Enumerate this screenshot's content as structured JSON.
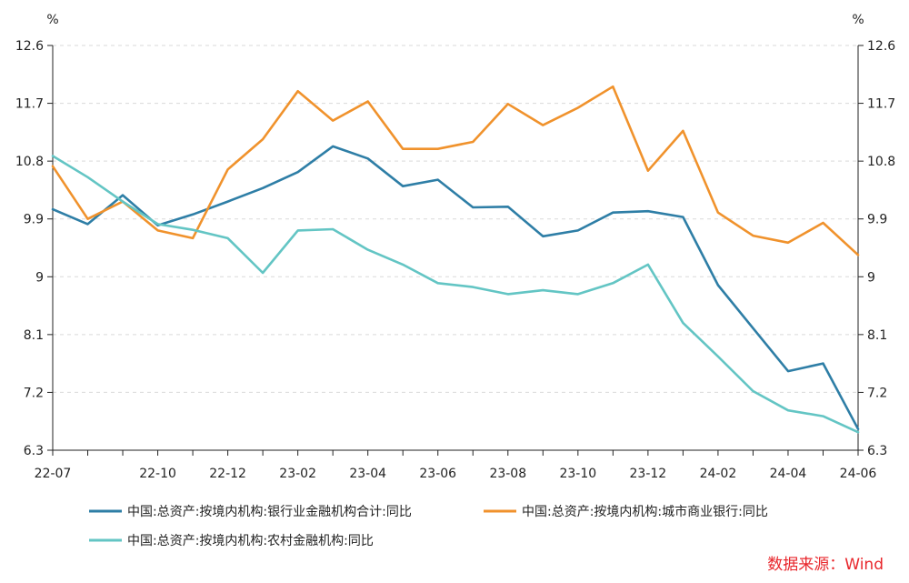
{
  "chart_data": {
    "type": "line",
    "y_unit_left": "%",
    "y_unit_right": "%",
    "ylim": [
      6.3,
      12.6
    ],
    "yticks": [
      "12.6",
      "11.7",
      "10.8",
      "9.9",
      "9",
      "8.1",
      "7.2",
      "6.3"
    ],
    "x": [
      "22-07",
      "22-08",
      "22-09",
      "22-10",
      "22-11",
      "22-12",
      "23-01",
      "23-02",
      "23-03",
      "23-04",
      "23-05",
      "23-06",
      "23-07",
      "23-08",
      "23-09",
      "23-10",
      "23-11",
      "23-12",
      "24-01",
      "24-02",
      "24-03",
      "24-04",
      "24-05",
      "24-06"
    ],
    "xtick_labels": [
      "22-07",
      "",
      "",
      "22-10",
      "",
      "22-12",
      "",
      "23-02",
      "",
      "23-04",
      "",
      "23-06",
      "",
      "23-08",
      "",
      "23-10",
      "",
      "23-12",
      "",
      "24-02",
      "",
      "24-04",
      "",
      "24-06"
    ],
    "series": [
      {
        "name": "中国:总资产:按境内机构:银行业金融机构合计:同比",
        "color": "#2e7ea6",
        "values": [
          10.05,
          9.82,
          10.27,
          9.8,
          9.97,
          10.17,
          10.38,
          10.63,
          11.03,
          10.84,
          10.41,
          10.51,
          10.08,
          10.09,
          9.63,
          9.72,
          10.0,
          10.02,
          9.93,
          8.87,
          8.2,
          7.53,
          7.65,
          6.63
        ]
      },
      {
        "name": "中国:总资产:按境内机构:城市商业银行:同比",
        "color": "#f0922c",
        "values": [
          10.72,
          9.9,
          10.17,
          9.72,
          9.6,
          10.67,
          11.14,
          11.89,
          11.43,
          11.73,
          10.99,
          10.99,
          11.1,
          11.69,
          11.36,
          11.63,
          11.96,
          10.65,
          11.27,
          10.0,
          9.64,
          9.53,
          9.84,
          9.34
        ]
      },
      {
        "name": "中国:总资产:按境内机构:农村金融机构:同比",
        "color": "#63c5c4",
        "values": [
          10.88,
          10.55,
          10.17,
          9.82,
          9.73,
          9.6,
          9.06,
          9.72,
          9.74,
          9.42,
          9.19,
          8.9,
          8.84,
          8.73,
          8.79,
          8.73,
          8.9,
          9.19,
          8.28,
          7.76,
          7.22,
          6.92,
          6.83,
          6.58
        ]
      }
    ],
    "grid": true,
    "legend_position": "bottom"
  },
  "source_label": "数据来源：Wind"
}
